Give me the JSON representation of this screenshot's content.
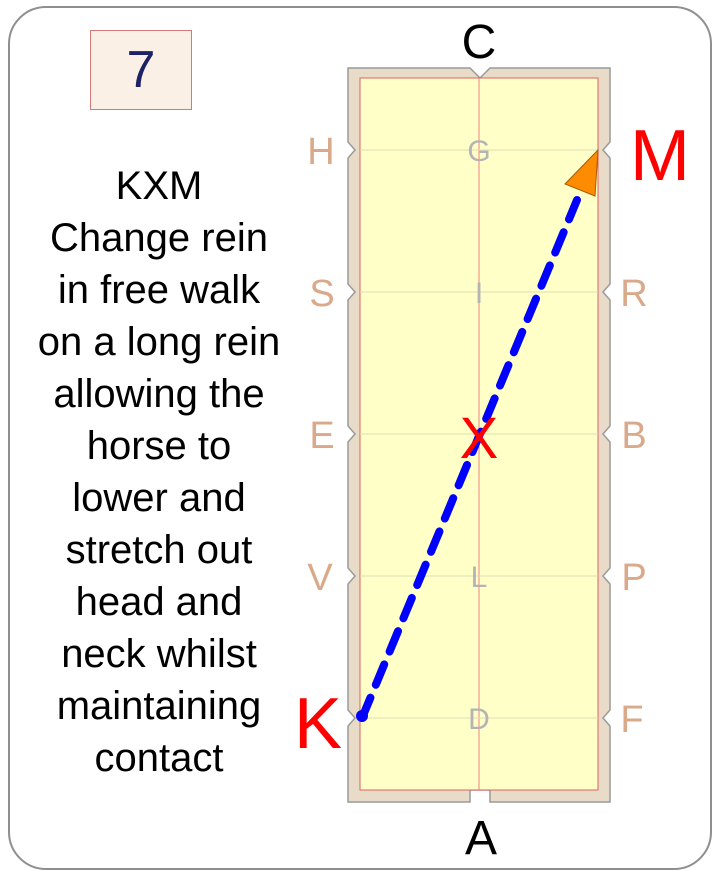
{
  "step_number": "7",
  "instruction": {
    "lines": [
      "KXM",
      "Change rein",
      "in free walk",
      "on a long rein",
      "allowing the",
      "horse to",
      "lower and",
      "stretch out",
      "head and",
      "neck whilst",
      "maintaining",
      "contact"
    ]
  },
  "arena": {
    "end_letters": {
      "top": "C",
      "bottom": "A"
    },
    "left_letters": [
      "H",
      "S",
      "E",
      "V",
      "K"
    ],
    "right_letters": [
      "M",
      "R",
      "B",
      "P",
      "F"
    ],
    "centre_letters": [
      "G",
      "I",
      "X",
      "L",
      "D"
    ],
    "highlighted": {
      "start": "K",
      "via": "X",
      "end": "M"
    }
  },
  "colors": {
    "arena_surface": "#ffffc8",
    "arena_border": "#e8dcc8",
    "path": "#0000ff",
    "arrow": "#ff8c00",
    "highlight": "#ff0000",
    "marker": "#d9a989"
  }
}
